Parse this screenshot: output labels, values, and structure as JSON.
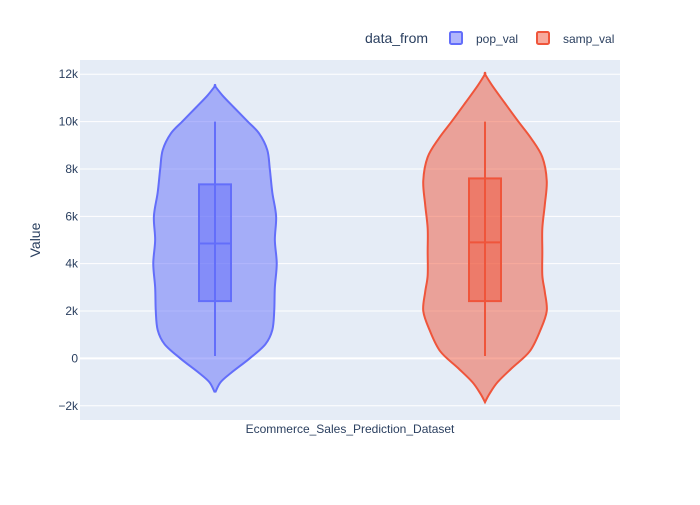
{
  "chart_data": {
    "type": "violin",
    "xlabel": "",
    "ylabel": "Value",
    "category": "Ecommerce_Sales_Prediction_Dataset",
    "ylim": [
      -2600,
      12600
    ],
    "yticks": [
      -2000,
      0,
      2000,
      4000,
      6000,
      8000,
      10000,
      12000
    ],
    "ytick_labels": [
      "−2k",
      "0",
      "2k",
      "4k",
      "6k",
      "8k",
      "10k",
      "12k"
    ],
    "grid": true,
    "legend": {
      "title": "data_from",
      "placement": "top-right",
      "orientation": "horizontal"
    },
    "series": [
      {
        "name": "pop_val",
        "color": "#636efa",
        "box": {
          "min": 100,
          "q1": 2420,
          "median": 4850,
          "q3": 7350,
          "max": 10000
        },
        "density": [
          [
            -1400,
            0.01
          ],
          [
            -1000,
            0.09
          ],
          [
            -600,
            0.26
          ],
          [
            0,
            0.55
          ],
          [
            600,
            0.8
          ],
          [
            1200,
            0.91
          ],
          [
            2000,
            0.94
          ],
          [
            3000,
            0.95
          ],
          [
            4000,
            0.98
          ],
          [
            5000,
            0.95
          ],
          [
            6000,
            0.97
          ],
          [
            7000,
            0.91
          ],
          [
            8000,
            0.87
          ],
          [
            8800,
            0.83
          ],
          [
            9500,
            0.7
          ],
          [
            10000,
            0.52
          ],
          [
            10600,
            0.3
          ],
          [
            11100,
            0.12
          ],
          [
            11500,
            0.0
          ]
        ]
      },
      {
        "name": "samp_val",
        "color": "#ef553b",
        "box": {
          "min": 100,
          "q1": 2420,
          "median": 4900,
          "q3": 7600,
          "max": 10000
        },
        "density": [
          [
            -1850,
            0.0
          ],
          [
            -1500,
            0.07
          ],
          [
            -1000,
            0.2
          ],
          [
            -400,
            0.43
          ],
          [
            300,
            0.71
          ],
          [
            1200,
            0.88
          ],
          [
            2000,
            0.98
          ],
          [
            2800,
            0.95
          ],
          [
            3500,
            0.91
          ],
          [
            4500,
            0.91
          ],
          [
            5500,
            0.91
          ],
          [
            6500,
            0.95
          ],
          [
            7500,
            0.98
          ],
          [
            8500,
            0.91
          ],
          [
            9300,
            0.73
          ],
          [
            10000,
            0.53
          ],
          [
            10800,
            0.31
          ],
          [
            11500,
            0.12
          ],
          [
            12000,
            0.0
          ]
        ]
      }
    ]
  }
}
